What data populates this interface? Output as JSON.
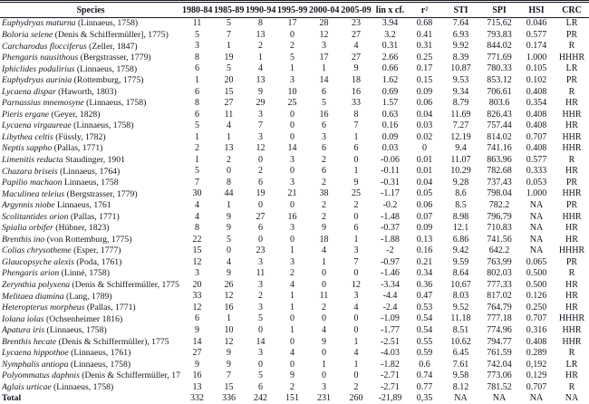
{
  "colors": {
    "text": "#15161f",
    "rule": "#15161f",
    "bottom_rule": "#94b3d6",
    "background": "#ffffff"
  },
  "table": {
    "columns": [
      "Species",
      "1980-84",
      "1985-89",
      "1990-94",
      "1995-99",
      "2000-04",
      "2005-09",
      "lin x cf.",
      "r²",
      "STI",
      "SPI",
      "HSI",
      "CRC"
    ],
    "rows": [
      {
        "name": "Euphydryas maturna",
        "authority": "(Linnaeus, 1758)",
        "values": [
          "11",
          "5",
          "8",
          "17",
          "28",
          "23",
          "3.94",
          "0.68",
          "7.64",
          "715.62",
          "0.046",
          "LR"
        ]
      },
      {
        "name": "Boloria selene",
        "authority": "(Denis & Schiffermüller], 1775)",
        "values": [
          "5",
          "7",
          "13",
          "0",
          "12",
          "27",
          "3.2",
          "0.41",
          "6.93",
          "793.83",
          "0.577",
          "PR"
        ]
      },
      {
        "name": "Carcharodus flocciferus",
        "authority": "(Zeller, 1847)",
        "values": [
          "3",
          "1",
          "2",
          "2",
          "3",
          "4",
          "0.31",
          "0.31",
          "9.92",
          "844.02",
          "0.174",
          "R"
        ]
      },
      {
        "name": "Phengaris nausithous",
        "authority": "(Bergstrasser, 1779)",
        "values": [
          "8",
          "19",
          "1",
          "5",
          "17",
          "27",
          "2.66",
          "0.25",
          "8.39",
          "771.69",
          "1.000",
          "HHHR"
        ]
      },
      {
        "name": "Iphiclides podalirius",
        "authority": "(Linnaeus, 1758)",
        "values": [
          "6",
          "5",
          "4",
          "1",
          "1",
          "9",
          "0.66",
          "0.17",
          "10.87",
          "780.33",
          "0.105",
          "LR"
        ]
      },
      {
        "name": "Euphydryas aurinia",
        "authority": "(Rottemburg, 1775)",
        "values": [
          "1",
          "20",
          "13",
          "3",
          "14",
          "18",
          "1.62",
          "0.15",
          "9.53",
          "853.12",
          "0.102",
          "PR"
        ]
      },
      {
        "name": "Lycaena dispar",
        "authority": "(Haworth, 1803)",
        "values": [
          "6",
          "15",
          "9",
          "10",
          "6",
          "16",
          "0.69",
          "0.09",
          "9.34",
          "706.61",
          "0.408",
          "R"
        ]
      },
      {
        "name": "Parnassius mnemosyne",
        "authority": "(Linnaeus, 1758)",
        "values": [
          "8",
          "27",
          "29",
          "25",
          "5",
          "33",
          "1.57",
          "0.06",
          "8.79",
          "803.6",
          "0.354",
          "HR"
        ]
      },
      {
        "name": "Pieris ergane",
        "authority": "(Geyer, 1828)",
        "values": [
          "6",
          "11",
          "3",
          "0",
          "16",
          "8",
          "0.63",
          "0.04",
          "11.69",
          "826.43",
          "0.408",
          "HHR"
        ]
      },
      {
        "name": "Lycaena virgaureae",
        "authority": "(Linnaeus, 1758)",
        "values": [
          "5",
          "4",
          "7",
          "0",
          "6",
          "7",
          "0.16",
          "0.03",
          "7.27",
          "757.44",
          "0.408",
          "HR"
        ]
      },
      {
        "name": "Libythea celtis",
        "authority": "(Füssly, 1782)",
        "values": [
          "1",
          "1",
          "3",
          "0",
          "3",
          "1",
          "0.09",
          "0.02",
          "12.19",
          "814.02",
          "0.707",
          "HHR"
        ]
      },
      {
        "name": "Neptis sappho",
        "authority": "(Pallas, 1771)",
        "values": [
          "2",
          "13",
          "12",
          "14",
          "6",
          "6",
          "0.03",
          "0",
          "9.4",
          "741.16",
          "0.408",
          "HHR"
        ]
      },
      {
        "name": "Limenitis reducta",
        "authority": "Staudinger, 1901",
        "values": [
          "1",
          "2",
          "0",
          "3",
          "2",
          "0",
          "-0.06",
          "0.01",
          "11.07",
          "863.96",
          "0.577",
          "R"
        ]
      },
      {
        "name": "Chazara briseis",
        "authority": "(Linnaeus, 1764)",
        "values": [
          "5",
          "0",
          "2",
          "0",
          "6",
          "1",
          "-0.11",
          "0.01",
          "10.29",
          "782.68",
          "0.333",
          "HR"
        ]
      },
      {
        "name": "Papilio machaon",
        "authority": "Linnaeus, 1758",
        "values": [
          "7",
          "8",
          "6",
          "3",
          "2",
          "9",
          "-0.31",
          "0.04",
          "9.28",
          "737.43",
          "0.053",
          "PR"
        ]
      },
      {
        "name": "Maculinea teleius",
        "authority": "(Bergstrasser, 1779)",
        "values": [
          "30",
          "44",
          "19",
          "21",
          "38",
          "25",
          "-1.17",
          "0.05",
          "8.6",
          "798.04",
          "1.000",
          "HHR"
        ]
      },
      {
        "name": "Argynnis niobe",
        "authority": "Linnaeus, 1761",
        "values": [
          "4",
          "1",
          "0",
          "0",
          "2",
          "2",
          "-0.2",
          "0.06",
          "8.5",
          "782.2",
          "NA",
          "PR"
        ]
      },
      {
        "name": "Scolitantides orion",
        "authority": "(Pallas, 1771)",
        "values": [
          "4",
          "9",
          "27",
          "16",
          "2",
          "0",
          "-1.48",
          "0.07",
          "8.98",
          "796.79",
          "NA",
          "HHR"
        ]
      },
      {
        "name": "Spialia orbifer",
        "authority": "(Hübner, 1823)",
        "values": [
          "8",
          "9",
          "6",
          "3",
          "9",
          "6",
          "-0.37",
          "0.09",
          "12.1",
          "710.83",
          "NA",
          "HR"
        ]
      },
      {
        "name": "Brenthis ino",
        "authority": "(von Rottemburg, 1775)",
        "values": [
          "22",
          "5",
          "0",
          "0",
          "18",
          "1",
          "-1.88",
          "0.13",
          "6.86",
          "741.56",
          "NA",
          "HR"
        ]
      },
      {
        "name": "Colias chrysotheme",
        "authority": "(Esper, 1777)",
        "values": [
          "15",
          "0",
          "23",
          "1",
          "4",
          "3",
          "-2",
          "0.16",
          "9.42",
          "642.2",
          "NA",
          "HHHR"
        ]
      },
      {
        "name": "Glaucopsyche alexis",
        "authority": "(Poda, 1761)",
        "values": [
          "12",
          "4",
          "3",
          "3",
          "1",
          "7",
          "-0.97",
          "0.21",
          "9.59",
          "763.99",
          "0.065",
          "PR"
        ]
      },
      {
        "name": "Phengaris arion",
        "authority": "(Linné, 1758)",
        "values": [
          "3",
          "9",
          "11",
          "2",
          "0",
          "0",
          "-1.46",
          "0.34",
          "8.64",
          "802.03",
          "0.500",
          "R"
        ]
      },
      {
        "name": "Zerynthia polyxena",
        "authority": "(Denis & Schiffermüller, 1775",
        "values": [
          "20",
          "26",
          "3",
          "4",
          "0",
          "12",
          "-3.34",
          "0.36",
          "10.67",
          "777.33",
          "0.500",
          "HR"
        ]
      },
      {
        "name": "Melitaea diamina",
        "authority": "(Lang, 1789)",
        "values": [
          "33",
          "12",
          "2",
          "1",
          "11",
          "3",
          "-4.4",
          "0.47",
          "8.03",
          "817.02",
          "0.126",
          "HR"
        ]
      },
      {
        "name": "Heteropterus morpheus",
        "authority": "(Pallas, 1771)",
        "values": [
          "12",
          "16",
          "3",
          "1",
          "2",
          "4",
          "-2.4",
          "0.53",
          "9.52",
          "764.79",
          "0.250",
          "HR"
        ]
      },
      {
        "name": "Iolana iolas",
        "authority": "(Ochsenheimer 1816)",
        "values": [
          "6",
          "1",
          "5",
          "0",
          "0",
          "0",
          "-1.09",
          "0.54",
          "11.18",
          "777.18",
          "0.707",
          "HHHR"
        ]
      },
      {
        "name": "Apatura iris",
        "authority": "(Linnaeus, 1758)",
        "values": [
          "9",
          "10",
          "0",
          "1",
          "4",
          "0",
          "-1.77",
          "0.54",
          "8.51",
          "774.96",
          "0.316",
          "HHR"
        ]
      },
      {
        "name": "Brenthis hecate",
        "authority": "(Denis & Schiffermüller), 1775",
        "values": [
          "14",
          "12",
          "14",
          "0",
          "9",
          "1",
          "-2.51",
          "0.55",
          "10.62",
          "794.77",
          "0.408",
          "HHR"
        ]
      },
      {
        "name": "Lycaena hippothoe",
        "authority": "(Linnaeus, 1761)",
        "values": [
          "27",
          "9",
          "3",
          "4",
          "0",
          "4",
          "-4.03",
          "0.59",
          "6.45",
          "761.59",
          "0.289",
          "R"
        ]
      },
      {
        "name": "Nymphalis antiopa",
        "authority": "(Linnaeus, 1758)",
        "values": [
          "9",
          "9",
          "0",
          "0",
          "1",
          "1",
          "-1.82",
          "0.6",
          "7.61",
          "742.04",
          "0,192",
          "LR"
        ]
      },
      {
        "name": "Polyommatus daphnis",
        "authority": "(Denis & Schiffermüller, 17",
        "values": [
          "16",
          "7",
          "5",
          "9",
          "0",
          "0",
          "-2.71",
          "0.74",
          "9.58",
          "773.06",
          "0.129",
          "HR"
        ]
      },
      {
        "name": "Aglais urticae",
        "authority": "(Linnaeus, 1758)",
        "values": [
          "13",
          "15",
          "6",
          "2",
          "3",
          "2",
          "-2.71",
          "0.77",
          "8.12",
          "781.52",
          "0.707",
          "R"
        ]
      }
    ],
    "total_label": "Total",
    "total_values": [
      "332",
      "336",
      "242",
      "151",
      "231",
      "260",
      "-21,89",
      "0,35",
      "NA",
      "NA",
      "NA",
      "NA"
    ]
  }
}
